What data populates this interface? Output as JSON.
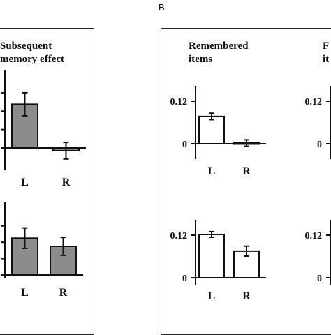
{
  "panel_b_label": "B",
  "headings": {
    "left": {
      "line1": "Subsequent",
      "line2": "memory effect"
    },
    "middle": {
      "line1": "Remembered",
      "line2": "items"
    },
    "right": {
      "line1": "F",
      "line2": "it"
    }
  },
  "colors": {
    "gray_bar": "#8c8c8c",
    "white_bar": "#ffffff",
    "ink": "#111111"
  },
  "chart_data": [
    {
      "type": "bar",
      "panel": "subsequent-memory-top",
      "categories": [
        "L",
        "R"
      ],
      "values": [
        0.095,
        -0.006
      ],
      "errors": [
        0.025,
        0.018
      ],
      "ylim": [
        -0.02,
        0.14
      ],
      "yticks": [],
      "fill": "gray"
    },
    {
      "type": "bar",
      "panel": "subsequent-memory-bottom",
      "categories": [
        "L",
        "R"
      ],
      "values": [
        0.09,
        0.07
      ],
      "errors": [
        0.025,
        0.022
      ],
      "ylim": [
        -0.03,
        0.14
      ],
      "yticks": [],
      "fill": "gray"
    },
    {
      "type": "bar",
      "panel": "remembered-top",
      "categories": [
        "L",
        "R"
      ],
      "values": [
        0.077,
        0.002
      ],
      "errors": [
        0.009,
        0.009
      ],
      "ylim": [
        -0.02,
        0.14
      ],
      "yticks": [
        0,
        0.12
      ],
      "fill": "white"
    },
    {
      "type": "bar",
      "panel": "remembered-bottom",
      "categories": [
        "L",
        "R"
      ],
      "values": [
        0.122,
        0.075
      ],
      "errors": [
        0.008,
        0.014
      ],
      "ylim": [
        -0.02,
        0.14
      ],
      "yticks": [
        0,
        0.12
      ],
      "fill": "white"
    },
    {
      "type": "bar",
      "panel": "forgotten-top",
      "categories": [],
      "values": [],
      "errors": [],
      "ylim": [
        -0.02,
        0.14
      ],
      "yticks": [
        0,
        0.12
      ],
      "fill": "white"
    },
    {
      "type": "bar",
      "panel": "forgotten-bottom",
      "categories": [],
      "values": [],
      "errors": [],
      "ylim": [
        -0.02,
        0.14
      ],
      "yticks": [
        0,
        0.12
      ],
      "fill": "white"
    }
  ]
}
